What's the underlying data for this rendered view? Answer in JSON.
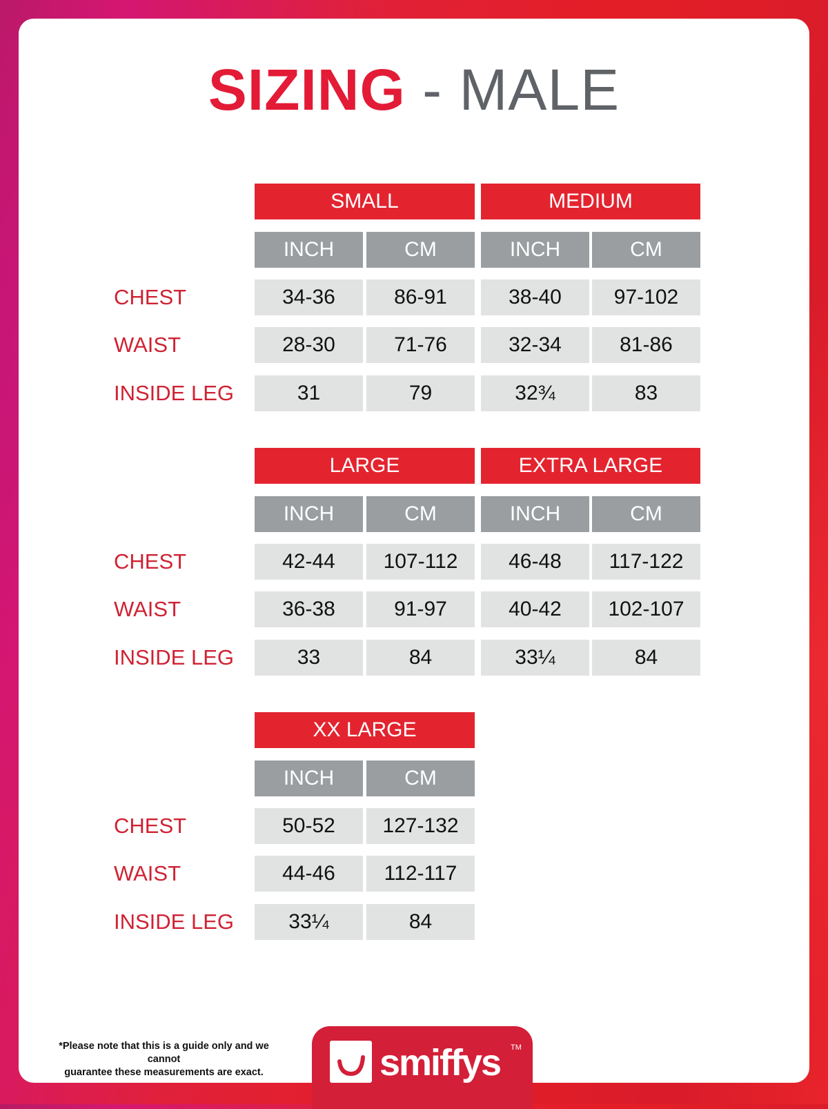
{
  "title": {
    "highlight": "SIZING",
    "rest": "- MALE"
  },
  "unit_labels": [
    "INCH",
    "CM"
  ],
  "row_labels": [
    "CHEST",
    "WAIST",
    "INSIDE LEG"
  ],
  "blocks": [
    {
      "sizes": [
        {
          "name": "SMALL",
          "values": [
            [
              "34-36",
              "86-91"
            ],
            [
              "28-30",
              "71-76"
            ],
            [
              "31",
              "79"
            ]
          ]
        },
        {
          "name": "MEDIUM",
          "values": [
            [
              "38-40",
              "97-102"
            ],
            [
              "32-34",
              "81-86"
            ],
            [
              "32¾",
              "83"
            ]
          ]
        }
      ]
    },
    {
      "sizes": [
        {
          "name": "LARGE",
          "values": [
            [
              "42-44",
              "107-112"
            ],
            [
              "36-38",
              "91-97"
            ],
            [
              "33",
              "84"
            ]
          ]
        },
        {
          "name": "EXTRA LARGE",
          "values": [
            [
              "46-48",
              "117-122"
            ],
            [
              "40-42",
              "102-107"
            ],
            [
              "33¼",
              "84"
            ]
          ]
        }
      ]
    },
    {
      "sizes": [
        {
          "name": "XX LARGE",
          "values": [
            [
              "50-52",
              "127-132"
            ],
            [
              "44-46",
              "112-117"
            ],
            [
              "33¼",
              "84"
            ]
          ]
        }
      ]
    }
  ],
  "footer": {
    "note_line1": "*Please note that this is a guide only and we cannot",
    "note_line2": "guarantee these measurements are exact.",
    "brand": "smiffys",
    "trademark": "TM"
  },
  "colors": {
    "accent_red": "#e3242f",
    "unit_gray": "#9a9ea1",
    "cell_gray": "#e1e2e2",
    "label_red": "#cf2233"
  }
}
